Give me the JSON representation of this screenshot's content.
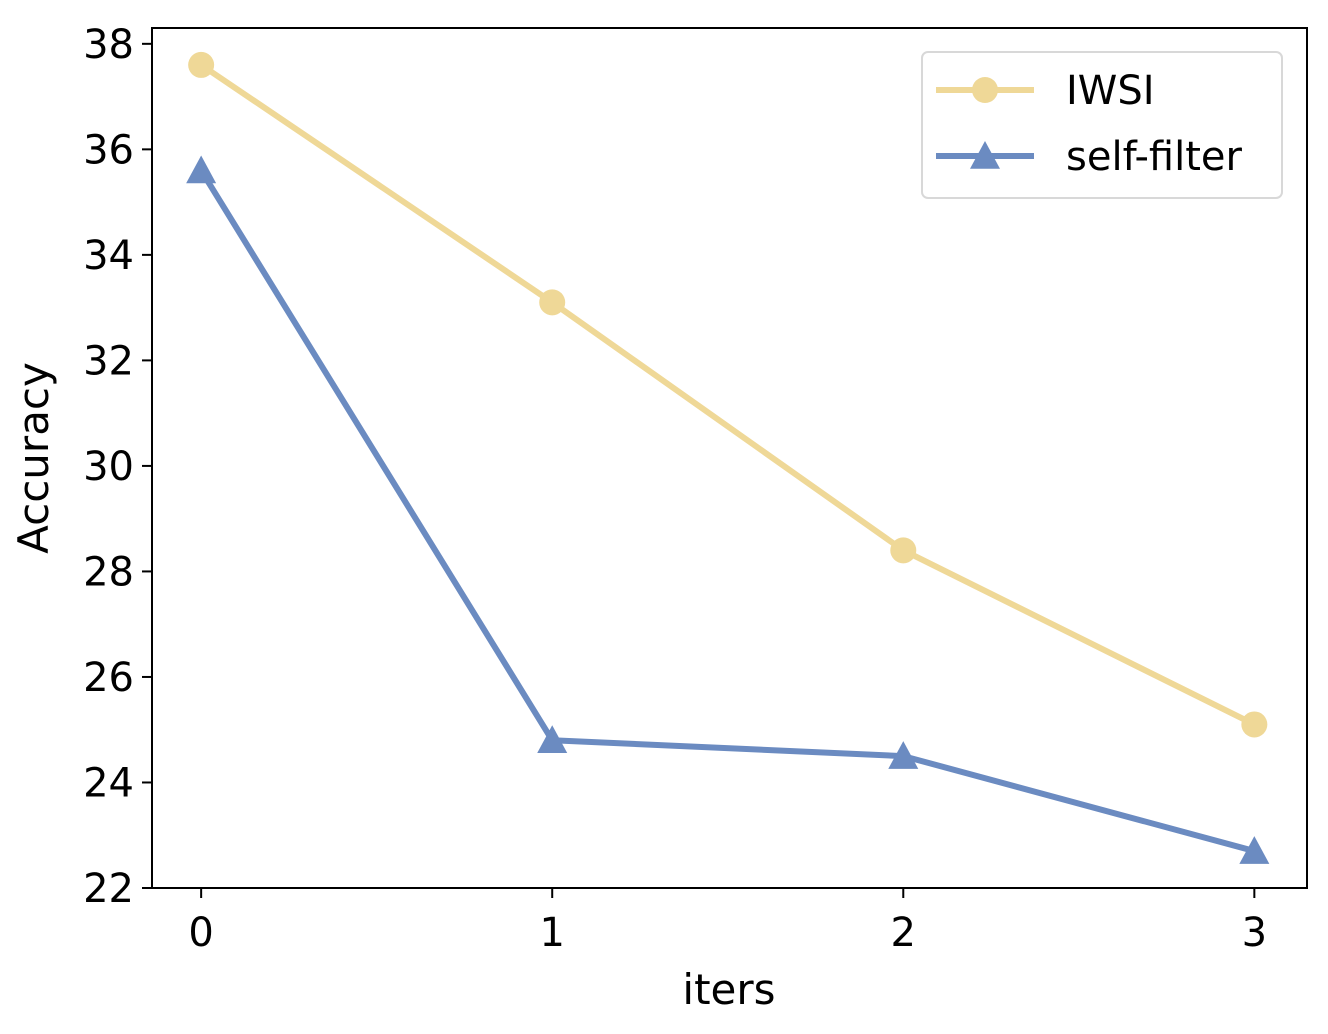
{
  "chart_data": {
    "type": "line",
    "title": "",
    "xlabel": "iters",
    "ylabel": "Accuracy",
    "x": [
      0,
      1,
      2,
      3
    ],
    "xticks": [
      "0",
      "1",
      "2",
      "3"
    ],
    "yticks": [
      "22",
      "24",
      "26",
      "28",
      "30",
      "32",
      "34",
      "36",
      "38"
    ],
    "xlim": [
      -0.14,
      3.15
    ],
    "ylim": [
      22,
      38.3
    ],
    "grid": false,
    "legend_position": "top-right",
    "series": [
      {
        "name": "IWSI",
        "values": [
          37.6,
          33.1,
          28.4,
          25.1
        ],
        "color": "#efd897",
        "marker": "circle"
      },
      {
        "name": "self-filter",
        "values": [
          35.6,
          24.8,
          24.5,
          22.7
        ],
        "color": "#6b8bc1",
        "marker": "triangle"
      }
    ]
  }
}
